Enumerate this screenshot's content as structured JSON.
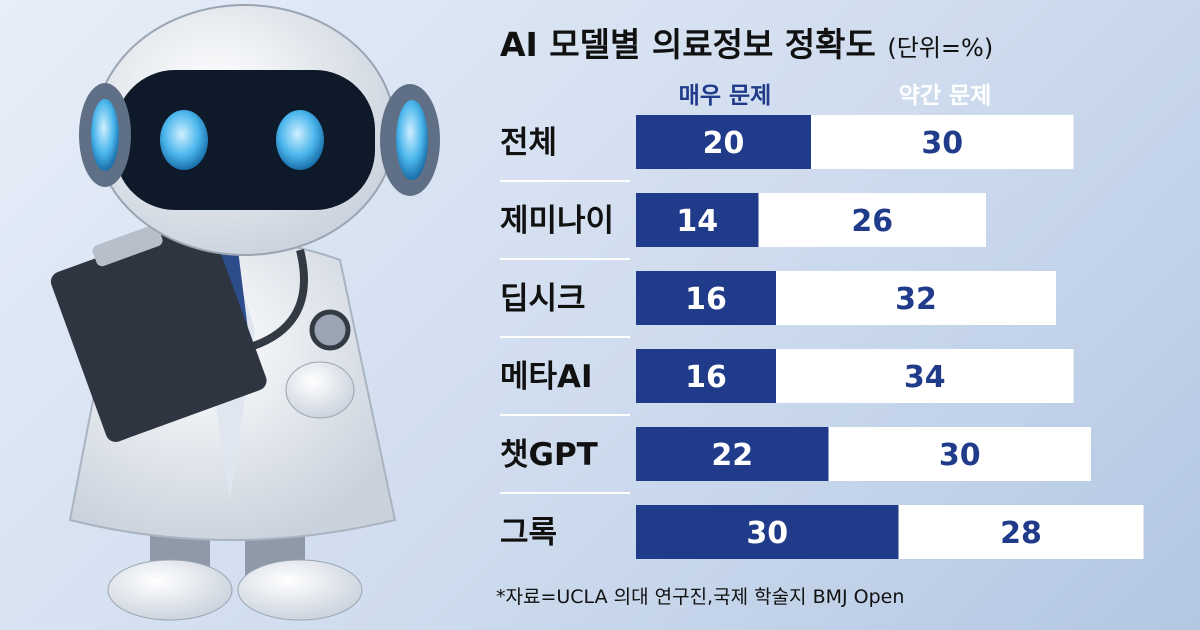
{
  "title": {
    "main": "AI 모델별 의료정보 정확도",
    "unit": "(단위=%)"
  },
  "colors": {
    "severe": "#1f3b8a",
    "moderate": "#ffffff",
    "severe_text": "#ffffff",
    "moderate_text": "#1f3b8a"
  },
  "chart_data": {
    "type": "bar",
    "orientation": "horizontal",
    "stacked": true,
    "categories": [
      "전체",
      "제미나이",
      "딥시크",
      "메타AI",
      "챗GPT",
      "그록"
    ],
    "series": [
      {
        "name": "매우 문제",
        "values": [
          20,
          14,
          16,
          16,
          22,
          30
        ]
      },
      {
        "name": "약간 문제",
        "values": [
          30,
          26,
          32,
          34,
          30,
          28
        ]
      }
    ],
    "legend_position": "top"
  },
  "source": "*자료=UCLA 의대 연구진,국제 학술지 BMJ Open"
}
